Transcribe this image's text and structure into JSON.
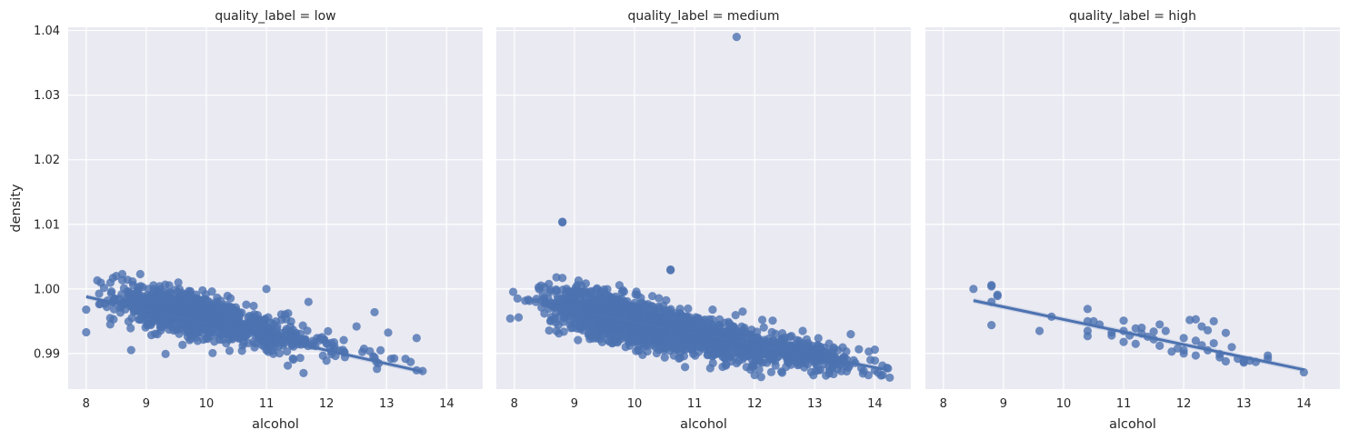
{
  "chart_data": {
    "type": "scatter",
    "shared_axes": {
      "xlabel": "alcohol",
      "ylabel": "density",
      "xlim": [
        7.7,
        14.6
      ],
      "ylim": [
        0.9845,
        1.0405
      ],
      "xticks": [
        8,
        9,
        10,
        11,
        12,
        13,
        14
      ],
      "yticks": [
        0.99,
        1.0,
        1.01,
        1.02,
        1.03,
        1.04
      ],
      "xtick_labels": [
        "8",
        "9",
        "10",
        "11",
        "12",
        "13",
        "14"
      ],
      "ytick_labels": [
        "0.99",
        "1.00",
        "1.01",
        "1.02",
        "1.03",
        "1.04"
      ],
      "grid": true
    },
    "point_color": "#4c72b0",
    "background_color": "#eaeaf2",
    "grid_color": "#ffffff",
    "facets": [
      {
        "title": "quality_label = low",
        "regression_line": [
          [
            8.0,
            0.9988
          ],
          [
            13.6,
            0.9872
          ]
        ],
        "clusters": [
          {
            "cx": 9.6,
            "cy": 0.9963,
            "sx": 0.55,
            "sy": 0.0018,
            "n": 650,
            "slope": -0.0021
          },
          {
            "cx": 10.8,
            "cy": 0.9935,
            "sx": 0.6,
            "sy": 0.0016,
            "n": 220,
            "slope": -0.0021
          },
          {
            "cx": 12.2,
            "cy": 0.9912,
            "sx": 0.5,
            "sy": 0.0011,
            "n": 35,
            "slope": -0.0021
          }
        ],
        "points": [
          {
            "x": 8.0,
            "y": 0.9968
          },
          {
            "x": 8.0,
            "y": 0.9933
          },
          {
            "x": 8.4,
            "y": 0.9955
          },
          {
            "x": 8.4,
            "y": 0.9945
          },
          {
            "x": 8.5,
            "y": 1.002
          },
          {
            "x": 8.6,
            "y": 1.0023
          },
          {
            "x": 8.9,
            "y": 1.0023
          },
          {
            "x": 11.0,
            "y": 1.0
          },
          {
            "x": 11.7,
            "y": 0.998
          },
          {
            "x": 12.5,
            "y": 0.9942
          },
          {
            "x": 12.8,
            "y": 0.9964
          },
          {
            "x": 12.9,
            "y": 0.9905
          },
          {
            "x": 13.5,
            "y": 0.9924
          },
          {
            "x": 13.4,
            "y": 0.9887
          },
          {
            "x": 13.5,
            "y": 0.9874
          },
          {
            "x": 13.6,
            "y": 0.9873
          },
          {
            "x": 12.0,
            "y": 0.9889
          },
          {
            "x": 12.8,
            "y": 0.9894
          },
          {
            "x": 12.3,
            "y": 0.9902
          },
          {
            "x": 11.5,
            "y": 0.9918
          }
        ]
      },
      {
        "title": "quality_label = medium",
        "regression_line": [
          [
            8.5,
            0.9975
          ],
          [
            14.2,
            0.9875
          ]
        ],
        "clusters": [
          {
            "cx": 9.7,
            "cy": 0.9955,
            "sx": 0.55,
            "sy": 0.0018,
            "n": 900,
            "slope": -0.0021
          },
          {
            "cx": 11.2,
            "cy": 0.9925,
            "sx": 0.7,
            "sy": 0.0016,
            "n": 700,
            "slope": -0.0021
          },
          {
            "cx": 12.9,
            "cy": 0.9899,
            "sx": 0.55,
            "sy": 0.0011,
            "n": 220,
            "slope": -0.0021
          }
        ],
        "points": [
          {
            "x": 11.7,
            "y": 1.039
          },
          {
            "x": 8.8,
            "y": 1.0103
          },
          {
            "x": 8.8,
            "y": 1.0104
          },
          {
            "x": 10.6,
            "y": 1.0029
          },
          {
            "x": 10.6,
            "y": 1.003
          },
          {
            "x": 8.5,
            "y": 1.0003
          },
          {
            "x": 8.5,
            "y": 0.9978
          },
          {
            "x": 8.5,
            "y": 0.9962
          },
          {
            "x": 8.6,
            "y": 0.995
          },
          {
            "x": 8.7,
            "y": 0.9935
          },
          {
            "x": 8.7,
            "y": 1.0018
          },
          {
            "x": 8.8,
            "y": 1.0017
          },
          {
            "x": 11.3,
            "y": 0.9968
          },
          {
            "x": 11.8,
            "y": 0.9965
          },
          {
            "x": 12.3,
            "y": 0.9951
          },
          {
            "x": 12.8,
            "y": 0.9935
          },
          {
            "x": 13.6,
            "y": 0.993
          },
          {
            "x": 13.9,
            "y": 0.9903
          },
          {
            "x": 14.0,
            "y": 0.9906
          },
          {
            "x": 14.2,
            "y": 0.9878
          },
          {
            "x": 14.0,
            "y": 0.9874
          },
          {
            "x": 11.7,
            "y": 0.9885
          },
          {
            "x": 12.1,
            "y": 0.9887
          },
          {
            "x": 11.3,
            "y": 0.9896
          }
        ]
      },
      {
        "title": "quality_label = high",
        "regression_line": [
          [
            8.5,
            0.9982
          ],
          [
            14.0,
            0.9875
          ]
        ],
        "clusters": [],
        "points": [
          {
            "x": 8.5,
            "y": 1.0
          },
          {
            "x": 8.8,
            "y": 1.0006
          },
          {
            "x": 8.8,
            "y": 1.0004
          },
          {
            "x": 8.8,
            "y": 0.998
          },
          {
            "x": 8.9,
            "y": 0.9991
          },
          {
            "x": 8.9,
            "y": 0.9989
          },
          {
            "x": 8.8,
            "y": 0.9944
          },
          {
            "x": 9.6,
            "y": 0.9935
          },
          {
            "x": 9.8,
            "y": 0.9957
          },
          {
            "x": 10.4,
            "y": 0.9969
          },
          {
            "x": 10.4,
            "y": 0.995
          },
          {
            "x": 10.4,
            "y": 0.9935
          },
          {
            "x": 10.4,
            "y": 0.9927
          },
          {
            "x": 10.5,
            "y": 0.995
          },
          {
            "x": 10.6,
            "y": 0.9945
          },
          {
            "x": 10.8,
            "y": 0.9933
          },
          {
            "x": 10.8,
            "y": 0.9928
          },
          {
            "x": 11.0,
            "y": 0.9951
          },
          {
            "x": 11.0,
            "y": 0.9935
          },
          {
            "x": 11.0,
            "y": 0.9918
          },
          {
            "x": 11.1,
            "y": 0.9928
          },
          {
            "x": 11.2,
            "y": 0.9939
          },
          {
            "x": 11.2,
            "y": 0.9915
          },
          {
            "x": 11.3,
            "y": 0.994
          },
          {
            "x": 11.3,
            "y": 0.9931
          },
          {
            "x": 11.4,
            "y": 0.9926
          },
          {
            "x": 11.5,
            "y": 0.9934
          },
          {
            "x": 11.5,
            "y": 0.9922
          },
          {
            "x": 11.6,
            "y": 0.9945
          },
          {
            "x": 11.6,
            "y": 0.9912
          },
          {
            "x": 11.7,
            "y": 0.9935
          },
          {
            "x": 11.8,
            "y": 0.9903
          },
          {
            "x": 11.9,
            "y": 0.9908
          },
          {
            "x": 12.0,
            "y": 0.9924
          },
          {
            "x": 12.0,
            "y": 0.9905
          },
          {
            "x": 12.0,
            "y": 0.99
          },
          {
            "x": 12.1,
            "y": 0.9952
          },
          {
            "x": 12.2,
            "y": 0.9953
          },
          {
            "x": 12.2,
            "y": 0.992
          },
          {
            "x": 12.2,
            "y": 0.9897
          },
          {
            "x": 12.3,
            "y": 0.9942
          },
          {
            "x": 12.3,
            "y": 0.9913
          },
          {
            "x": 12.4,
            "y": 0.9936
          },
          {
            "x": 12.4,
            "y": 0.9905
          },
          {
            "x": 12.5,
            "y": 0.995
          },
          {
            "x": 12.5,
            "y": 0.9916
          },
          {
            "x": 12.6,
            "y": 0.9899
          },
          {
            "x": 12.6,
            "y": 0.9894
          },
          {
            "x": 12.7,
            "y": 0.9932
          },
          {
            "x": 12.7,
            "y": 0.9888
          },
          {
            "x": 12.8,
            "y": 0.991
          },
          {
            "x": 12.9,
            "y": 0.9892
          },
          {
            "x": 13.0,
            "y": 0.9888
          },
          {
            "x": 13.0,
            "y": 0.9886
          },
          {
            "x": 13.1,
            "y": 0.9889
          },
          {
            "x": 13.2,
            "y": 0.9887
          },
          {
            "x": 13.4,
            "y": 0.9897
          },
          {
            "x": 13.4,
            "y": 0.9892
          },
          {
            "x": 14.0,
            "y": 0.9871
          }
        ]
      }
    ]
  }
}
